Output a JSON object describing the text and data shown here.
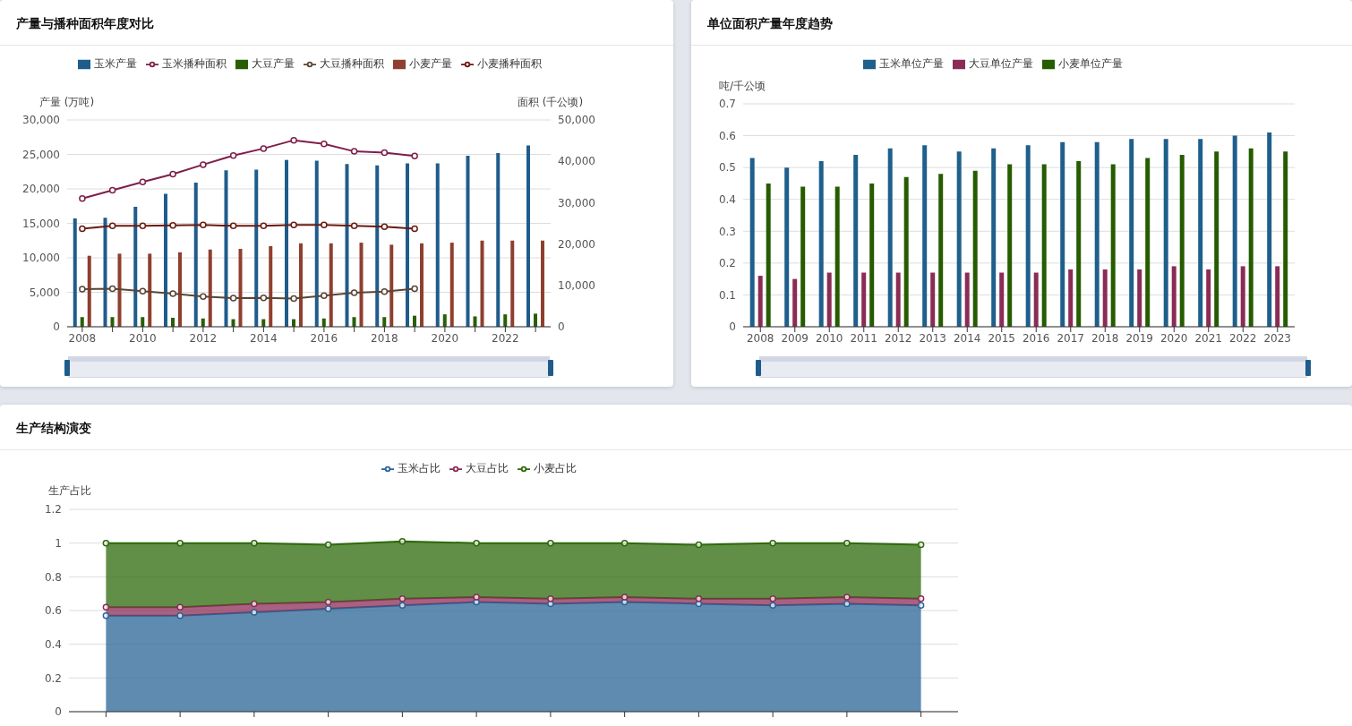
{
  "chart_data": [
    {
      "type": "bar",
      "title": "产量与播种面积年度对比",
      "ylabel": "产量 (万吨)",
      "y2label": "面积 (千公顷)",
      "categories": [
        "2008",
        null,
        "2010",
        null,
        "2012",
        null,
        "2014",
        null,
        "2016",
        null,
        "2018",
        null,
        "2020",
        null,
        "2022",
        null
      ],
      "series": [
        {
          "name": "玉米产量",
          "color": "#1f5c8b",
          "values": [
            15700,
            15800,
            17400,
            19300,
            20900,
            22700,
            22800,
            24200,
            24100,
            23600,
            23400,
            23700,
            23700,
            24800,
            25200,
            26300
          ]
        },
        {
          "name": "玉米播种面积",
          "type": "line",
          "axis": "y2",
          "color": "#7f1f4a",
          "values": [
            31000,
            33000,
            35000,
            36900,
            39200,
            41400,
            43100,
            45100,
            44200,
            42400,
            42100,
            41300,
            null,
            null,
            null,
            null
          ]
        },
        {
          "name": "大豆产量",
          "color": "#2a5e05",
          "values": [
            1400,
            1400,
            1400,
            1300,
            1200,
            1100,
            1100,
            1100,
            1200,
            1400,
            1400,
            1600,
            1800,
            1500,
            1800,
            1900
          ]
        },
        {
          "name": "大豆播种面积",
          "type": "line",
          "axis": "y2",
          "color": "#5a4535",
          "values": [
            9100,
            9200,
            8600,
            8000,
            7300,
            6900,
            7000,
            6800,
            7500,
            8200,
            8500,
            9200,
            null,
            null,
            null,
            null
          ]
        },
        {
          "name": "小麦产量",
          "color": "#8f3f2f",
          "values": [
            10300,
            10600,
            10600,
            10800,
            11200,
            11300,
            11700,
            12100,
            12100,
            12200,
            11900,
            12100,
            12200,
            12500,
            12500,
            12500
          ]
        },
        {
          "name": "小麦播种面积",
          "type": "line",
          "axis": "y2",
          "color": "#6b1a10",
          "values": [
            23700,
            24400,
            24400,
            24500,
            24600,
            24400,
            24400,
            24600,
            24600,
            24400,
            24200,
            23700,
            null,
            null,
            null,
            null
          ]
        }
      ],
      "ylim": [
        0,
        30000
      ],
      "yticks": [
        0,
        {
          "value": 5000,
          "label": "5,000"
        },
        {
          "value": 10000,
          "label": "10,000"
        },
        {
          "value": 15000,
          "label": "15,000"
        },
        {
          "value": 20000,
          "label": "20,000"
        },
        {
          "value": 25000,
          "label": "25,000"
        },
        {
          "value": 30000,
          "label": "30,000"
        }
      ],
      "y2lim": [
        0,
        50000
      ],
      "y2ticks": [
        0,
        {
          "value": 10000,
          "label": "10,000"
        },
        {
          "value": 20000,
          "label": "20,000"
        },
        {
          "value": 30000,
          "label": "30,000"
        },
        {
          "value": 40000,
          "label": "40,000"
        },
        {
          "value": 50000,
          "label": "50,000"
        }
      ],
      "grid": "y",
      "legend": "top",
      "marker": "circle"
    },
    {
      "type": "bar",
      "title": "单位面积产量年度趋势",
      "ylabel": "吨/千公顷",
      "categories": [
        "2008",
        "2009",
        "2010",
        "2011",
        "2012",
        "2013",
        "2014",
        "2015",
        "2016",
        "2017",
        "2018",
        "2019",
        "2020",
        "2021",
        "2022",
        "2023"
      ],
      "series": [
        {
          "name": "玉米单位产量",
          "color": "#1f5f8b",
          "values": [
            0.53,
            0.5,
            0.52,
            0.54,
            0.56,
            0.57,
            0.55,
            0.56,
            0.57,
            0.58,
            0.58,
            0.59,
            0.59,
            0.59,
            0.6,
            0.61
          ]
        },
        {
          "name": "大豆单位产量",
          "color": "#8b2c55",
          "values": [
            0.16,
            0.15,
            0.17,
            0.17,
            0.17,
            0.17,
            0.17,
            0.17,
            0.17,
            0.18,
            0.18,
            0.18,
            0.19,
            0.18,
            0.19,
            0.19
          ]
        },
        {
          "name": "小麦单位产量",
          "color": "#265c00",
          "values": [
            0.45,
            0.44,
            0.44,
            0.45,
            0.47,
            0.48,
            0.49,
            0.51,
            0.51,
            0.52,
            0.51,
            0.53,
            0.54,
            0.55,
            0.56,
            0.55
          ]
        }
      ],
      "ylim": [
        0,
        0.7
      ],
      "yticks": [
        0,
        0.1,
        0.2,
        0.3,
        0.4,
        0.5,
        0.6,
        0.7
      ],
      "grid": "y",
      "legend": "top"
    },
    {
      "type": "area",
      "title": "生产结构演变",
      "ylabel": "生产占比",
      "stacked": true,
      "categories": [
        null,
        null,
        null,
        null,
        null,
        null,
        null,
        null,
        null,
        null,
        null,
        null
      ],
      "series": [
        {
          "name": "玉米占比",
          "color": "#2a6496",
          "values": [
            0.57,
            0.57,
            0.59,
            0.61,
            0.63,
            0.65,
            0.64,
            0.65,
            0.64,
            0.63,
            0.64,
            0.63
          ]
        },
        {
          "name": "大豆占比",
          "color": "#8b2c55",
          "values": [
            0.05,
            0.05,
            0.05,
            0.04,
            0.04,
            0.03,
            0.03,
            0.03,
            0.03,
            0.04,
            0.04,
            0.04
          ]
        },
        {
          "name": "小麦占比",
          "color": "#2d6a0a",
          "values": [
            0.38,
            0.38,
            0.36,
            0.34,
            0.34,
            0.32,
            0.33,
            0.32,
            0.32,
            0.33,
            0.32,
            0.32
          ]
        }
      ],
      "ylim": [
        0,
        1.2
      ],
      "yticks": [
        0,
        0.2,
        0.4,
        0.6,
        0.8,
        1,
        1.2
      ],
      "grid": "y",
      "legend": "top",
      "marker": "circle"
    }
  ]
}
